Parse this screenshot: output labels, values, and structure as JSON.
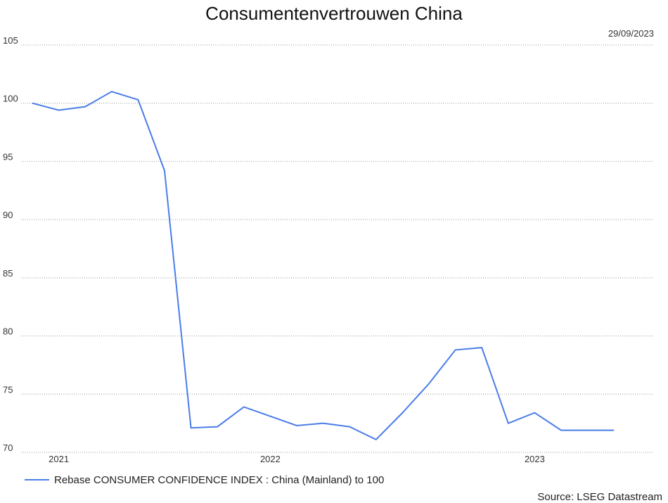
{
  "chart_data": {
    "type": "line",
    "title": "Consumentenvertrouwen China",
    "date": "29/09/2023",
    "source": "Source: LSEG Datastream",
    "categories": [
      null,
      "2021",
      null,
      null,
      null,
      null,
      null,
      null,
      null,
      "2022",
      null,
      null,
      null,
      null,
      null,
      null,
      null,
      null,
      null,
      "2023",
      null,
      null,
      null
    ],
    "series": [
      {
        "name": "Rebase CONSUMER CONFIDENCE INDEX : China (Mainland) to 100",
        "color": "#4a7de8",
        "values": [
          100.0,
          99.4,
          99.7,
          101.0,
          100.3,
          94.2,
          72.1,
          72.2,
          73.9,
          73.1,
          72.3,
          72.5,
          72.2,
          71.1,
          73.4,
          75.9,
          78.8,
          79.0,
          72.5,
          73.4,
          71.9,
          71.9,
          71.9
        ]
      }
    ],
    "ylim": [
      70,
      105
    ],
    "yticks": [
      70,
      75,
      80,
      85,
      90,
      95,
      100,
      105
    ],
    "grid": true
  }
}
